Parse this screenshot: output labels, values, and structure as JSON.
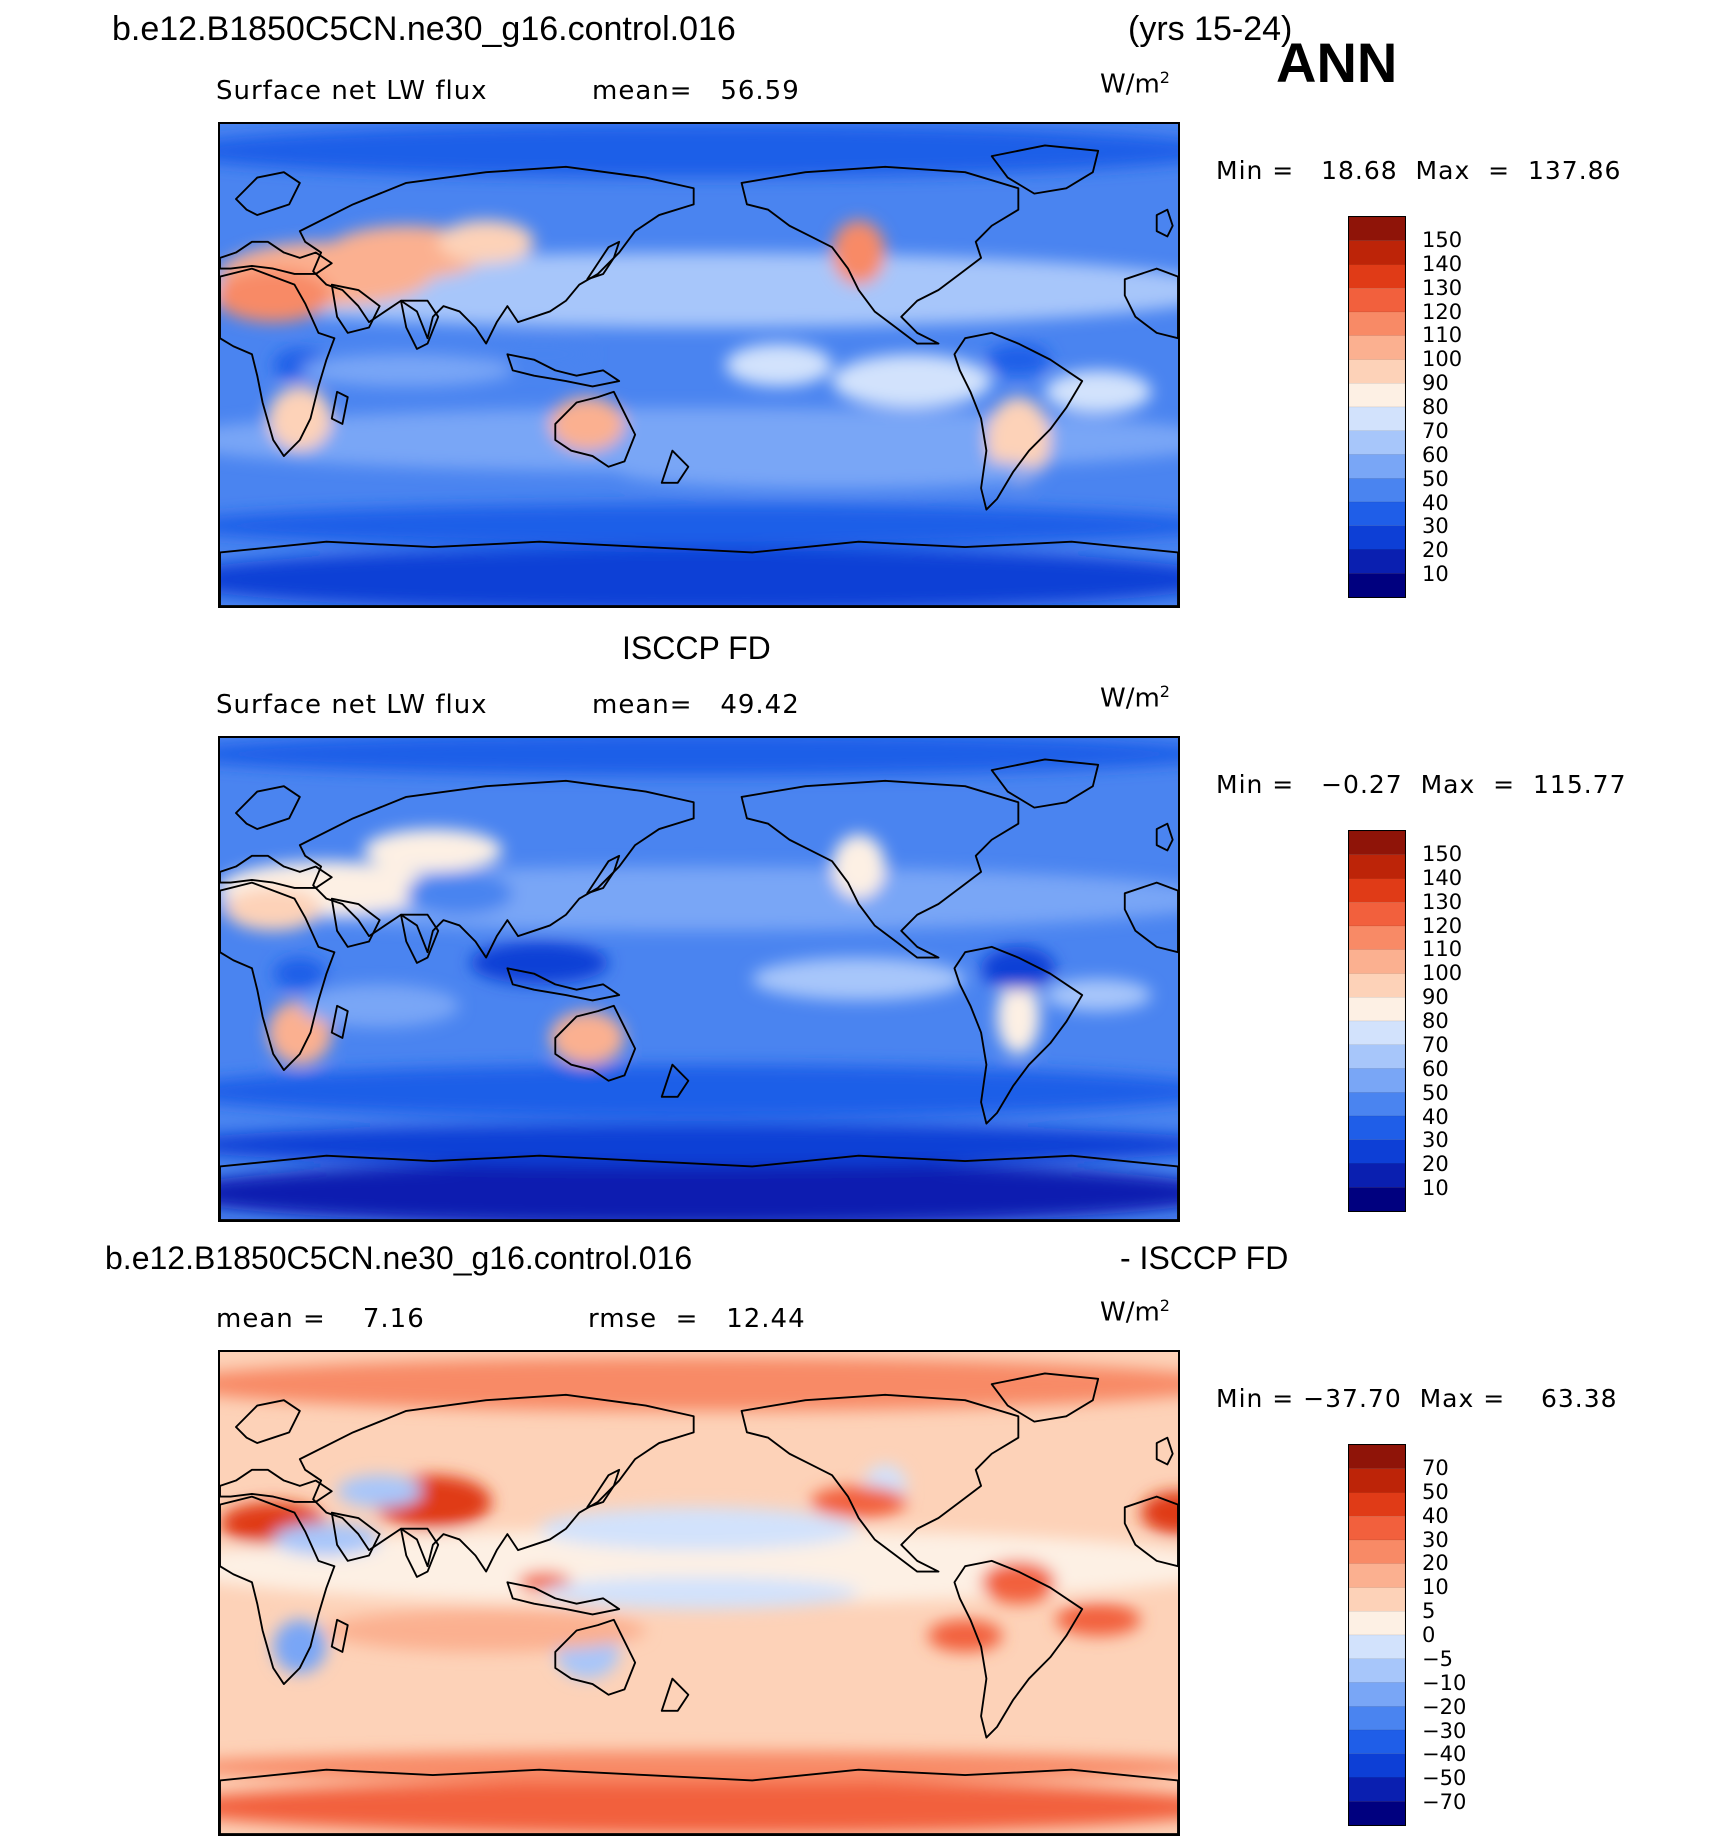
{
  "header": {
    "case_name": "b.e12.B1850C5CN.ne30_g16.control.016",
    "years": "(yrs 15-24)",
    "season": "ANN"
  },
  "colors": {
    "abs_scale": [
      "#00007f",
      "#0a1fb0",
      "#0d3fd6",
      "#1f5ee8",
      "#4a84f0",
      "#79a6f6",
      "#a7c6fa",
      "#d2e2fc",
      "#fdf0e4",
      "#fdd2b8",
      "#fbb090",
      "#f88a66",
      "#f2603d",
      "#e03b17",
      "#bd2408",
      "#8f1408"
    ],
    "diff_scale": [
      "#00007f",
      "#0a1fb0",
      "#0d3fd6",
      "#1f5ee8",
      "#4a84f0",
      "#79a6f6",
      "#a7c6fa",
      "#d2e2fc",
      "#fdf0e4",
      "#fdd2b8",
      "#fbb090",
      "#f88a66",
      "#f2603d",
      "#e03b17",
      "#bd2408",
      "#8f1408"
    ]
  },
  "panels": [
    {
      "id": "model",
      "title": "",
      "variable": "Surface net LW flux",
      "stat": "mean=   56.59",
      "units": "W/m",
      "min_max": "Min =   18.68  Max  =  137.86",
      "colorbar_labels": [
        "150",
        "140",
        "130",
        "120",
        "110",
        "100",
        "90",
        "80",
        "70",
        "60",
        "50",
        "40",
        "30",
        "20",
        "10"
      ],
      "field_type": "model"
    },
    {
      "id": "obs",
      "title": "ISCCP FD",
      "variable": "Surface net LW flux",
      "stat": "mean=   49.42",
      "units": "W/m",
      "min_max": "Min =   −0.27  Max  =  115.77",
      "colorbar_labels": [
        "150",
        "140",
        "130",
        "120",
        "110",
        "100",
        "90",
        "80",
        "70",
        "60",
        "50",
        "40",
        "30",
        "20",
        "10"
      ],
      "field_type": "obs"
    },
    {
      "id": "diff",
      "title_left": "b.e12.B1850C5CN.ne30_g16.control.016",
      "title_right": "- ISCCP FD",
      "stat_left": "mean =    7.16",
      "stat_right": "rmse  =   12.44",
      "units": "W/m",
      "min_max": "Min = −37.70  Max =    63.38",
      "colorbar_labels": [
        "70",
        "50",
        "40",
        "30",
        "20",
        "10",
        "5",
        "0",
        "−5",
        "−10",
        "−20",
        "−30",
        "−40",
        "−50",
        "−70"
      ],
      "field_type": "diff"
    }
  ]
}
